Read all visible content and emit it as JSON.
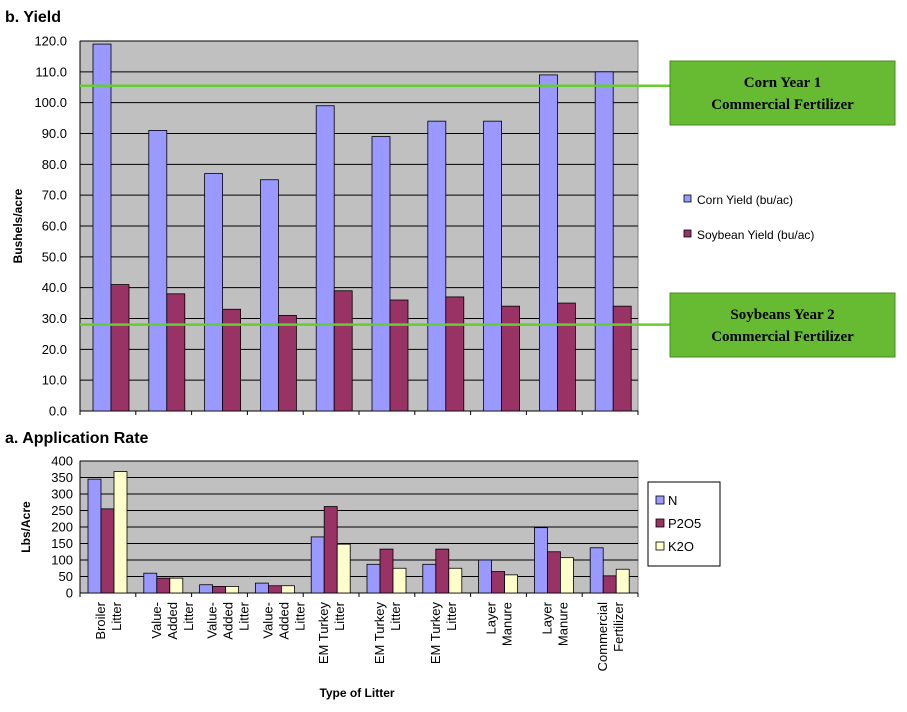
{
  "chart_data": [
    {
      "type": "bar",
      "title": "b. Yield",
      "ylabel": "Bushels/acre",
      "ylim": [
        0,
        120
      ],
      "yticks": [
        "0.0",
        "10.0",
        "20.0",
        "30.0",
        "40.0",
        "50.0",
        "60.0",
        "70.0",
        "80.0",
        "90.0",
        "100.0",
        "110.0",
        "120.0"
      ],
      "grid": true,
      "legend": "right",
      "series": [
        {
          "name": "Corn Yield (bu/ac)",
          "color": "#9999ff",
          "values": [
            119,
            91,
            77,
            75,
            99,
            89,
            94,
            94,
            109,
            110
          ]
        },
        {
          "name": "Soybean Yield (bu/ac)",
          "color": "#993366",
          "values": [
            41,
            38,
            33,
            31,
            39,
            36,
            37,
            34,
            35,
            34
          ]
        }
      ],
      "annotations": [
        {
          "lines": [
            "Corn Year 1",
            "Commercial Fertilizer"
          ],
          "y": 105.5,
          "line_color": "#66cc33",
          "box_color": "#66bb33"
        },
        {
          "lines": [
            "Soybeans Year 2",
            "Commercial Fertilizer"
          ],
          "y": 28,
          "line_color": "#66cc33",
          "box_color": "#66bb33"
        }
      ]
    },
    {
      "type": "bar",
      "title": "a. Application Rate",
      "ylabel": "Lbs/Acre",
      "xlabel": "Type of Litter",
      "ylim": [
        0,
        400
      ],
      "yticks": [
        "0",
        "50",
        "100",
        "150",
        "200",
        "250",
        "300",
        "350",
        "400"
      ],
      "grid": true,
      "legend": "right",
      "categories": [
        [
          "Broiler",
          "Litter"
        ],
        [
          "Value-",
          "Added",
          "Litter"
        ],
        [
          "Value-",
          "Added",
          "Litter"
        ],
        [
          "Value-",
          "Added",
          "Litter"
        ],
        [
          "EM Turkey",
          "Litter"
        ],
        [
          "EM Turkey",
          "Litter"
        ],
        [
          "EM Turkey",
          "Litter"
        ],
        [
          "Layer",
          "Manure"
        ],
        [
          "Layer",
          "Manure"
        ],
        [
          "Commercial",
          "Fertilizer"
        ]
      ],
      "series": [
        {
          "name": "N",
          "color": "#9999ff",
          "values": [
            345,
            60,
            25,
            30,
            170,
            87,
            87,
            100,
            198,
            137
          ]
        },
        {
          "name": "P2O5",
          "color": "#993366",
          "values": [
            255,
            45,
            20,
            22,
            262,
            133,
            133,
            65,
            125,
            52
          ]
        },
        {
          "name": "K2O",
          "color": "#ffffcc",
          "values": [
            368,
            45,
            20,
            22,
            148,
            75,
            75,
            55,
            107,
            72
          ]
        }
      ]
    }
  ]
}
